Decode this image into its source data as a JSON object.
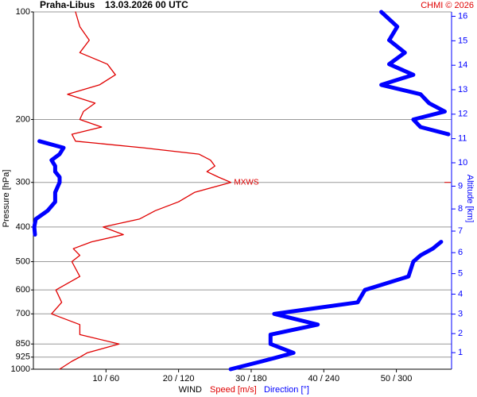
{
  "chart_data": {
    "type": "line",
    "title": "Praha-Libus",
    "subtitle": "13.03.2026 00 UTC",
    "credit": "CHMI © 2026",
    "ylabel": "Pressure [hPa]",
    "y2label": "Altitude [km]",
    "xlabel": "WIND",
    "tick_separator": "/",
    "y": [
      100,
      110,
      120,
      130,
      140,
      150,
      160,
      170,
      180,
      190,
      200,
      210,
      220,
      230,
      240,
      250,
      260,
      270,
      280,
      290,
      300,
      320,
      340,
      360,
      380,
      400,
      420,
      440,
      460,
      480,
      500,
      550,
      600,
      650,
      700,
      750,
      800,
      850,
      900,
      925,
      950,
      1000
    ],
    "ylim": [
      1000,
      100
    ],
    "ylog": true,
    "grid": true,
    "yticks": [
      100,
      200,
      300,
      400,
      500,
      600,
      700,
      850,
      925,
      1000
    ],
    "y2ticks": [
      1,
      2,
      3,
      4,
      5,
      6,
      7,
      8,
      9,
      10,
      11,
      12,
      13,
      14,
      15,
      16
    ],
    "xlim": [
      0,
      57.6
    ],
    "xticks": [
      10,
      20,
      30,
      40,
      50
    ],
    "x2lim": [
      0,
      345.6
    ],
    "x2ticks": [
      60,
      120,
      180,
      240,
      300
    ],
    "series": [
      {
        "name": "Speed [m/s]",
        "color": "#e00000",
        "values": [
          5.8,
          6.4,
          7.7,
          6.4,
          10.2,
          11.3,
          9.1,
          4.7,
          8.5,
          6.9,
          6.4,
          9.4,
          5.3,
          5.8,
          15.1,
          22.8,
          24.4,
          25,
          23.9,
          25.5,
          27.2,
          22.2,
          20,
          16.8,
          14.6,
          9.6,
          12.4,
          8,
          5.5,
          6.4,
          5.3,
          6.4,
          3.1,
          3.9,
          2.5,
          6.4,
          6.4,
          11.8,
          7.4,
          6.4,
          5.3,
          3.6
        ]
      },
      {
        "name": "Direction [°]",
        "color": "#0000ff",
        "axis": "x2",
        "values": [
          287.5,
          300.7,
          294,
          307,
          294,
          314,
          287.5,
          320,
          327,
          340,
          314,
          320,
          343,
          5,
          25,
          21.7,
          15,
          18,
          18,
          21.7,
          21.7,
          18,
          18,
          11.8,
          2,
          0.7,
          1.3,
          337,
          330,
          320,
          314,
          310,
          274,
          268,
          199,
          235,
          196,
          196,
          215,
          202,
          189,
          163
        ]
      }
    ],
    "annotations": [
      {
        "text": "MXWS",
        "y": 300
      }
    ]
  }
}
